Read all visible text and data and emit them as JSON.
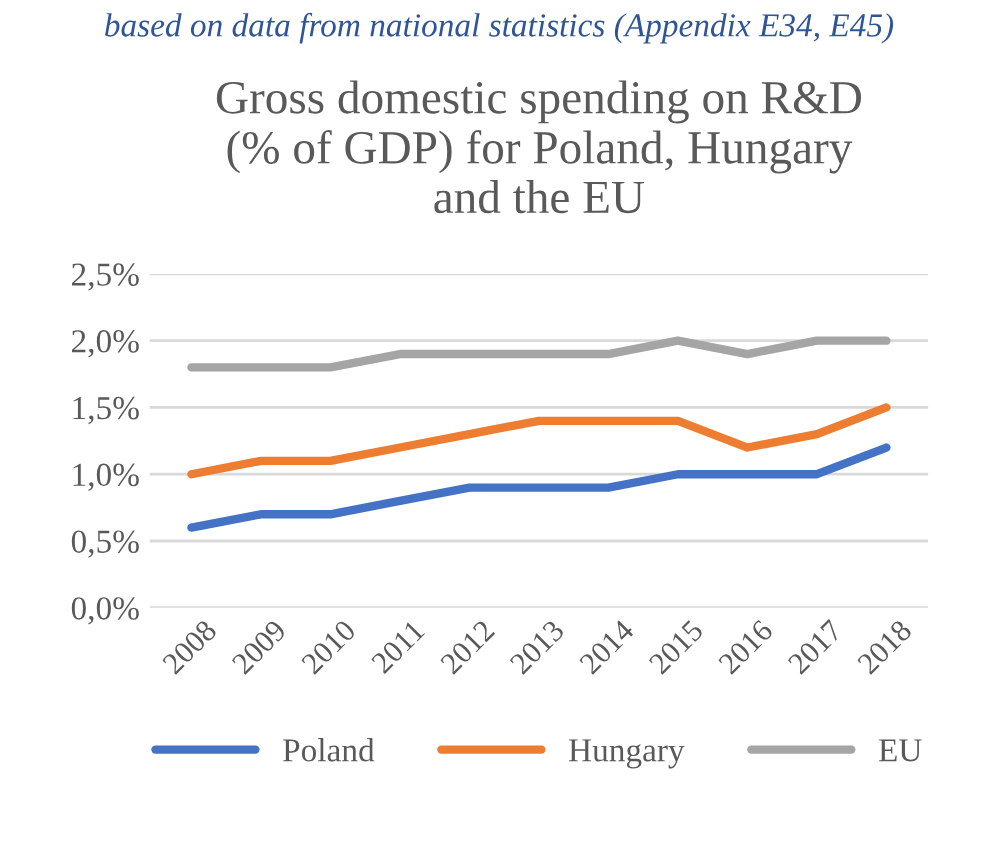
{
  "chart_data": {
    "type": "line",
    "title": "Gross domestic spending on R&D\n(% of GDP) for Poland, Hungary\nand the EU",
    "annotations": [
      "based on data from national statistics (Appendix E34, E45)"
    ],
    "categories": [
      "2008",
      "2009",
      "2010",
      "2011",
      "2012",
      "2013",
      "2014",
      "2015",
      "2016",
      "2017",
      "2018"
    ],
    "series": [
      {
        "name": "Poland",
        "color": "#4472c4",
        "values": [
          0.6,
          0.7,
          0.7,
          0.8,
          0.9,
          0.9,
          0.9,
          1.0,
          1.0,
          1.0,
          1.2
        ]
      },
      {
        "name": "Hungary",
        "color": "#ed7d31",
        "values": [
          1.0,
          1.1,
          1.1,
          1.2,
          1.3,
          1.4,
          1.4,
          1.4,
          1.2,
          1.3,
          1.5
        ]
      },
      {
        "name": "EU",
        "color": "#a5a5a5",
        "values": [
          1.8,
          1.8,
          1.8,
          1.9,
          1.9,
          1.9,
          1.9,
          2.0,
          1.9,
          2.0,
          2.0
        ]
      }
    ],
    "ylim": [
      0,
      2.5
    ],
    "yticks": [
      {
        "value": 0,
        "label": "0,0%"
      },
      {
        "value": 0.5,
        "label": "0,5%"
      },
      {
        "value": 1.0,
        "label": "1,0%"
      },
      {
        "value": 1.5,
        "label": "1,5%"
      },
      {
        "value": 2.0,
        "label": "2,0%"
      },
      {
        "value": 2.5,
        "label": "2,5%"
      }
    ],
    "grid": "y",
    "legend": "bottom",
    "marker": "none",
    "line_style": "solid"
  }
}
